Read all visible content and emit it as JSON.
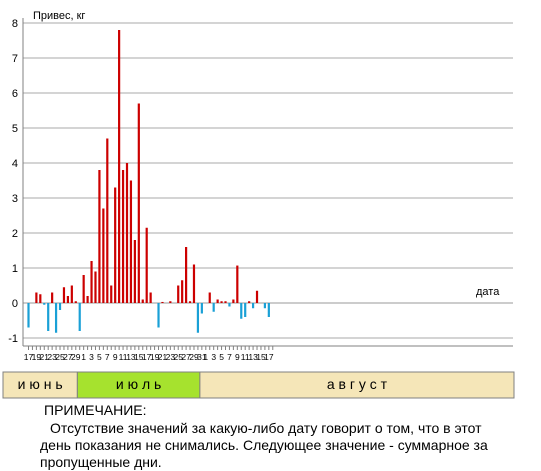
{
  "chart_data": {
    "type": "bar",
    "ylabel": "Привес, кг",
    "xlabel": "дата",
    "ylim": [
      -1,
      8
    ],
    "grid": true,
    "yticks": [
      -1,
      0,
      1,
      2,
      3,
      4,
      5,
      6,
      7,
      8
    ],
    "x_tick_labels": [
      "17",
      "19",
      "21",
      "23",
      "25",
      "27",
      "29",
      "1",
      "3",
      "5",
      "7",
      "9",
      "11",
      "13",
      "15",
      "17",
      "19",
      "21",
      "23",
      "25",
      "27",
      "29",
      "31",
      "1",
      "3",
      "5",
      "7",
      "9",
      "11",
      "13",
      "15",
      "17"
    ],
    "positive_color": "#cc0000",
    "negative_color": "#1aa0d6",
    "x_dates": [
      "06-17",
      "06-18",
      "06-19",
      "06-20",
      "06-21",
      "06-22",
      "06-23",
      "06-24",
      "06-25",
      "06-26",
      "06-27",
      "06-28",
      "06-29",
      "06-30",
      "07-01",
      "07-02",
      "07-03",
      "07-04",
      "07-05",
      "07-06",
      "07-07",
      "07-08",
      "07-09",
      "07-10",
      "07-11",
      "07-12",
      "07-13",
      "07-14",
      "07-15",
      "07-16",
      "07-17",
      "07-18",
      "07-19",
      "07-20",
      "07-21",
      "07-22",
      "07-23",
      "07-24",
      "07-25",
      "07-26",
      "07-27",
      "07-28",
      "07-29",
      "07-30",
      "07-31",
      "08-01",
      "08-02",
      "08-03",
      "08-04",
      "08-05",
      "08-06",
      "08-07",
      "08-08",
      "08-09",
      "08-10",
      "08-11",
      "08-12",
      "08-13",
      "08-14",
      "08-15",
      "08-16",
      "08-17",
      "08-18"
    ],
    "values": [
      -0.7,
      null,
      0.3,
      0.25,
      -0.05,
      -0.8,
      0.3,
      -0.85,
      -0.2,
      0.45,
      0.2,
      0.5,
      0.05,
      -0.8,
      0.8,
      0.2,
      1.2,
      0.9,
      3.8,
      2.7,
      4.7,
      0.5,
      3.3,
      7.8,
      3.8,
      4.0,
      3.5,
      1.8,
      5.7,
      0.1,
      2.15,
      0.3,
      null,
      -0.7,
      0.03,
      null,
      0.05,
      null,
      0.5,
      0.65,
      1.6,
      0.05,
      1.1,
      -0.85,
      -0.3,
      null,
      0.3,
      -0.25,
      0.1,
      0.05,
      0.05,
      -0.1,
      0.1,
      1.07,
      -0.45,
      -0.4,
      0.05,
      -0.15,
      0.35,
      null,
      -0.15,
      -0.4,
      null
    ]
  },
  "months": [
    {
      "label": "и ю н ь",
      "color": "#f5e6b8"
    },
    {
      "label": "и ю л ь",
      "color": "#a6e22e"
    },
    {
      "label": "а в г у с т",
      "color": "#f5e6b8"
    }
  ],
  "note": {
    "title": "ПРИМЕЧАНИЕ:",
    "text": "Отсутствие значений за какую-либо дату говорит о том, что в этот день показания не снимались. Следующее значение - суммарное за пропущенные дни."
  }
}
